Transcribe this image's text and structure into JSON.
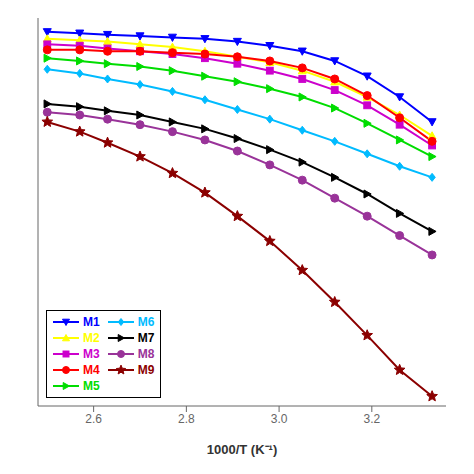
{
  "chart_data": {
    "type": "line",
    "xlabel": "1000/T (K⁻¹)",
    "xlim": [
      2.48,
      3.36
    ],
    "ylim": [
      -1.75,
      1.05
    ],
    "xticks": [
      2.6,
      2.8,
      {
        "value": 3.0,
        "label": "3.0"
      },
      3.2
    ],
    "tick_labels": "x",
    "grid": false,
    "legend": "lower left",
    "series": [
      {
        "name": "M1",
        "color": "#0000FF",
        "marker": "triangle-down",
        "x": [
          2.5,
          2.57,
          2.63,
          2.7,
          2.77,
          2.84,
          2.91,
          2.98,
          3.05,
          3.12,
          3.19,
          3.26,
          3.33
        ],
        "values": [
          0.95,
          0.94,
          0.93,
          0.92,
          0.91,
          0.9,
          0.88,
          0.85,
          0.81,
          0.74,
          0.63,
          0.48,
          0.3
        ]
      },
      {
        "name": "M2",
        "color": "#FFFF00",
        "marker": "triangle-up",
        "x": [
          2.5,
          2.57,
          2.63,
          2.7,
          2.77,
          2.84,
          2.91,
          2.98,
          3.05,
          3.12,
          3.19,
          3.26,
          3.33
        ],
        "values": [
          0.9,
          0.89,
          0.88,
          0.86,
          0.84,
          0.81,
          0.77,
          0.73,
          0.67,
          0.59,
          0.48,
          0.35,
          0.2
        ]
      },
      {
        "name": "M3",
        "color": "#CC00CC",
        "marker": "square",
        "x": [
          2.5,
          2.57,
          2.63,
          2.7,
          2.77,
          2.84,
          2.91,
          2.98,
          3.05,
          3.12,
          3.19,
          3.26,
          3.33
        ],
        "values": [
          0.86,
          0.85,
          0.83,
          0.81,
          0.79,
          0.76,
          0.72,
          0.67,
          0.61,
          0.53,
          0.42,
          0.28,
          0.13
        ]
      },
      {
        "name": "M4",
        "color": "#FF0000",
        "marker": "circle",
        "x": [
          2.5,
          2.57,
          2.63,
          2.7,
          2.77,
          2.84,
          2.91,
          2.98,
          3.05,
          3.12,
          3.19,
          3.26,
          3.33
        ],
        "values": [
          0.82,
          0.82,
          0.81,
          0.81,
          0.8,
          0.79,
          0.77,
          0.74,
          0.69,
          0.61,
          0.49,
          0.33,
          0.16
        ]
      },
      {
        "name": "M5",
        "color": "#00DD00",
        "marker": "triangle-right",
        "x": [
          2.5,
          2.57,
          2.63,
          2.7,
          2.77,
          2.84,
          2.91,
          2.98,
          3.05,
          3.12,
          3.19,
          3.26,
          3.33
        ],
        "values": [
          0.76,
          0.74,
          0.72,
          0.7,
          0.67,
          0.63,
          0.59,
          0.54,
          0.48,
          0.4,
          0.29,
          0.17,
          0.05
        ]
      },
      {
        "name": "M6",
        "color": "#00BBFF",
        "marker": "diamond",
        "x": [
          2.5,
          2.57,
          2.63,
          2.7,
          2.77,
          2.84,
          2.91,
          2.98,
          3.05,
          3.12,
          3.19,
          3.26,
          3.33
        ],
        "values": [
          0.68,
          0.65,
          0.61,
          0.57,
          0.52,
          0.46,
          0.39,
          0.32,
          0.24,
          0.16,
          0.07,
          -0.02,
          -0.1
        ]
      },
      {
        "name": "M7",
        "color": "#000000",
        "marker": "triangle-right",
        "x": [
          2.5,
          2.57,
          2.63,
          2.7,
          2.77,
          2.84,
          2.91,
          2.98,
          3.05,
          3.12,
          3.19,
          3.26,
          3.33
        ],
        "values": [
          0.43,
          0.41,
          0.38,
          0.35,
          0.3,
          0.25,
          0.18,
          0.1,
          0.01,
          -0.1,
          -0.22,
          -0.36,
          -0.49
        ]
      },
      {
        "name": "M8",
        "color": "#993399",
        "marker": "circle",
        "x": [
          2.5,
          2.57,
          2.63,
          2.7,
          2.77,
          2.84,
          2.91,
          2.98,
          3.05,
          3.12,
          3.19,
          3.26,
          3.33
        ],
        "values": [
          0.37,
          0.35,
          0.32,
          0.28,
          0.23,
          0.17,
          0.09,
          -0.01,
          -0.12,
          -0.25,
          -0.38,
          -0.52,
          -0.66
        ]
      },
      {
        "name": "M9",
        "color": "#8B0000",
        "marker": "star",
        "x": [
          2.5,
          2.57,
          2.63,
          2.7,
          2.77,
          2.84,
          2.91,
          2.98,
          3.05,
          3.12,
          3.19,
          3.26,
          3.33
        ],
        "values": [
          0.3,
          0.23,
          0.15,
          0.05,
          -0.07,
          -0.21,
          -0.38,
          -0.56,
          -0.77,
          -1.0,
          -1.24,
          -1.49,
          -1.68
        ]
      }
    ]
  }
}
